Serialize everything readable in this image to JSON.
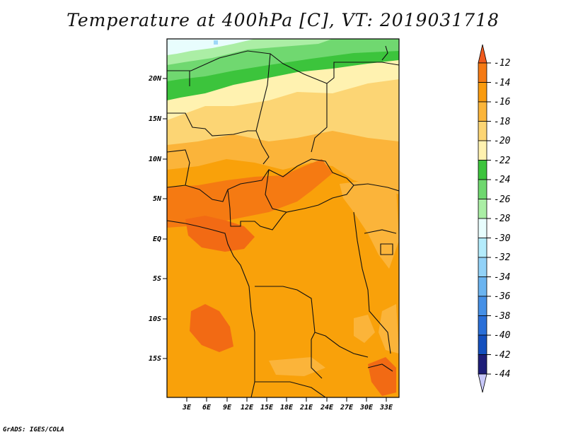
{
  "title": "Temperature at 400hPa [C], VT: 2019031718",
  "footer": "GrADS: IGES/COLA",
  "lat_labels": [
    "20N",
    "15N",
    "10N",
    "5N",
    "EQ",
    "5S",
    "10S",
    "15S"
  ],
  "lon_labels": [
    "3E",
    "6E",
    "9E",
    "12E",
    "15E",
    "18E",
    "21E",
    "24E",
    "27E",
    "30E",
    "33E"
  ],
  "colorbar": {
    "labels": [
      "-12",
      "-14",
      "-16",
      "-18",
      "-20",
      "-22",
      "-24",
      "-26",
      "-28",
      "-30",
      "-32",
      "-34",
      "-36",
      "-38",
      "-40",
      "-42",
      "-44"
    ],
    "colors": [
      "#ef5a1e",
      "#f57a14",
      "#f99b0f",
      "#fbb53a",
      "#fcd574",
      "#fff2b0",
      "#3dc43d",
      "#6fd86f",
      "#aaeea5",
      "#e8fdfd",
      "#b4ecfc",
      "#92d2f8",
      "#6bb4f0",
      "#4690e6",
      "#2a6fd8",
      "#1450be",
      "#1e1e78",
      "#c8c8fa"
    ]
  }
}
